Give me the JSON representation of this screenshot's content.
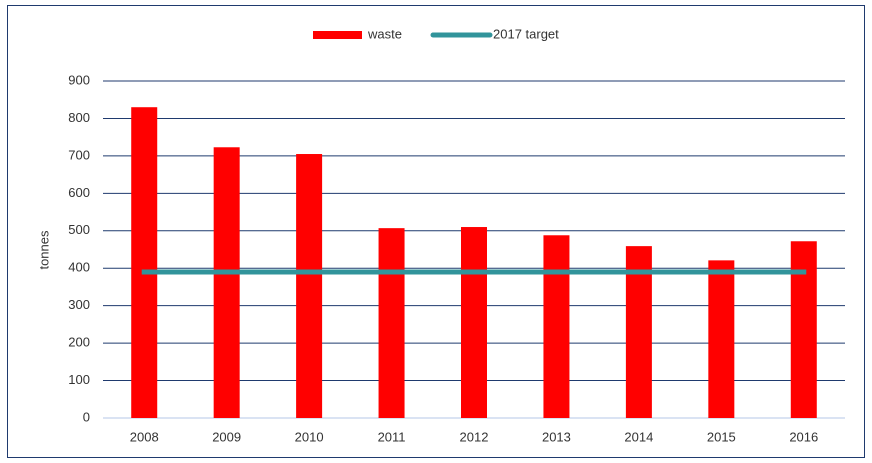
{
  "chart_data": {
    "type": "bar",
    "categories": [
      "2008",
      "2009",
      "2010",
      "2011",
      "2012",
      "2013",
      "2014",
      "2015",
      "2016"
    ],
    "series": [
      {
        "name": "waste",
        "type": "bar",
        "color": "#ff0000",
        "values": [
          830,
          723,
          705,
          507,
          510,
          488,
          459,
          421,
          472
        ]
      },
      {
        "name": "2017 target",
        "type": "line",
        "color": "#31949b",
        "values": [
          390,
          390,
          390,
          390,
          390,
          390,
          390,
          390,
          390
        ]
      }
    ],
    "y_label": "tonnes",
    "ylim": [
      0,
      900
    ],
    "yticks": [
      0,
      100,
      200,
      300,
      400,
      500,
      600,
      700,
      800,
      900
    ],
    "grid": true,
    "legend": "top"
  }
}
